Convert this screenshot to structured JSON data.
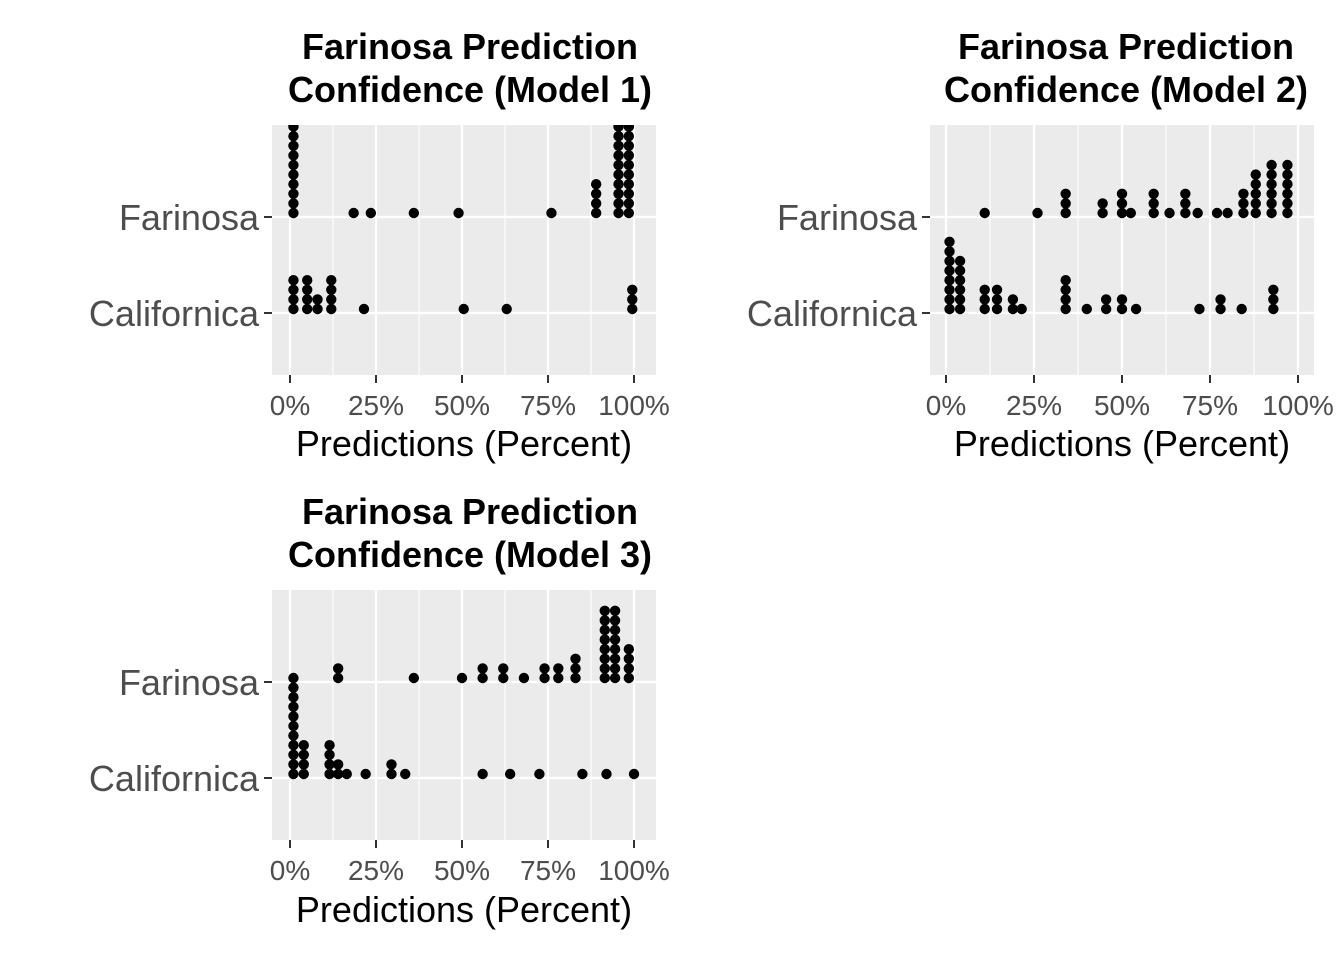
{
  "chart_data": [
    {
      "type": "dotplot",
      "title": "Farinosa Prediction Confidence (Model 1)",
      "title_lines": [
        "Farinosa Prediction",
        "Confidence (Model 1)"
      ],
      "xlabel": "Predictions (Percent)",
      "ylabel": "",
      "xlim": [
        0,
        1
      ],
      "xticks": [
        0,
        0.25,
        0.5,
        0.75,
        1.0
      ],
      "xtick_labels": [
        "0%",
        "25%",
        "50%",
        "75%",
        "100%"
      ],
      "categories": [
        "Californica",
        "Farinosa"
      ],
      "grid": true,
      "panel_background": "#ebebeb",
      "dot_color": "#000000",
      "series": [
        {
          "category": "Farinosa",
          "stacks": [
            {
              "x": 0.01,
              "count": 16
            },
            {
              "x": 0.185,
              "count": 1
            },
            {
              "x": 0.235,
              "count": 1
            },
            {
              "x": 0.36,
              "count": 1
            },
            {
              "x": 0.49,
              "count": 1
            },
            {
              "x": 0.76,
              "count": 1
            },
            {
              "x": 0.89,
              "count": 4
            },
            {
              "x": 0.955,
              "count": 12
            },
            {
              "x": 0.985,
              "count": 12
            }
          ]
        },
        {
          "category": "Californica",
          "stacks": [
            {
              "x": 0.01,
              "count": 4
            },
            {
              "x": 0.05,
              "count": 4
            },
            {
              "x": 0.08,
              "count": 2
            },
            {
              "x": 0.12,
              "count": 4
            },
            {
              "x": 0.215,
              "count": 1
            },
            {
              "x": 0.505,
              "count": 1
            },
            {
              "x": 0.63,
              "count": 1
            },
            {
              "x": 0.995,
              "count": 3
            }
          ]
        }
      ]
    },
    {
      "type": "dotplot",
      "title": "Farinosa Prediction Confidence (Model 2)",
      "title_lines": [
        "Farinosa Prediction",
        "Confidence (Model 2)"
      ],
      "xlabel": "Predictions (Percent)",
      "ylabel": "",
      "xlim": [
        0,
        1
      ],
      "xticks": [
        0,
        0.25,
        0.5,
        0.75,
        1.0
      ],
      "xtick_labels": [
        "0%",
        "25%",
        "50%",
        "75%",
        "100%"
      ],
      "categories": [
        "Californica",
        "Farinosa"
      ],
      "grid": true,
      "panel_background": "#ebebeb",
      "dot_color": "#000000",
      "series": [
        {
          "category": "Farinosa",
          "stacks": [
            {
              "x": 0.11,
              "count": 1
            },
            {
              "x": 0.26,
              "count": 1
            },
            {
              "x": 0.34,
              "count": 3
            },
            {
              "x": 0.445,
              "count": 2
            },
            {
              "x": 0.5,
              "count": 3
            },
            {
              "x": 0.525,
              "count": 1
            },
            {
              "x": 0.59,
              "count": 3
            },
            {
              "x": 0.635,
              "count": 1
            },
            {
              "x": 0.68,
              "count": 3
            },
            {
              "x": 0.715,
              "count": 1
            },
            {
              "x": 0.77,
              "count": 1
            },
            {
              "x": 0.8,
              "count": 1
            },
            {
              "x": 0.845,
              "count": 3
            },
            {
              "x": 0.88,
              "count": 5
            },
            {
              "x": 0.925,
              "count": 6
            },
            {
              "x": 0.97,
              "count": 6
            }
          ]
        },
        {
          "category": "Californica",
          "stacks": [
            {
              "x": 0.01,
              "count": 8
            },
            {
              "x": 0.04,
              "count": 6
            },
            {
              "x": 0.11,
              "count": 3
            },
            {
              "x": 0.145,
              "count": 3
            },
            {
              "x": 0.19,
              "count": 2
            },
            {
              "x": 0.215,
              "count": 1
            },
            {
              "x": 0.34,
              "count": 4
            },
            {
              "x": 0.4,
              "count": 1
            },
            {
              "x": 0.455,
              "count": 2
            },
            {
              "x": 0.5,
              "count": 2
            },
            {
              "x": 0.54,
              "count": 1
            },
            {
              "x": 0.72,
              "count": 1
            },
            {
              "x": 0.78,
              "count": 2
            },
            {
              "x": 0.84,
              "count": 1
            },
            {
              "x": 0.93,
              "count": 3
            }
          ]
        }
      ]
    },
    {
      "type": "dotplot",
      "title": "Farinosa Prediction Confidence (Model 3)",
      "title_lines": [
        "Farinosa Prediction",
        "Confidence (Model 3)"
      ],
      "xlabel": "Predictions (Percent)",
      "ylabel": "",
      "xlim": [
        0,
        1
      ],
      "xticks": [
        0,
        0.25,
        0.5,
        0.75,
        1.0
      ],
      "xtick_labels": [
        "0%",
        "25%",
        "50%",
        "75%",
        "100%"
      ],
      "categories": [
        "Californica",
        "Farinosa"
      ],
      "grid": true,
      "panel_background": "#ebebeb",
      "dot_color": "#000000",
      "series": [
        {
          "category": "Farinosa",
          "stacks": [
            {
              "x": 0.14,
              "count": 2
            },
            {
              "x": 0.36,
              "count": 1
            },
            {
              "x": 0.5,
              "count": 1
            },
            {
              "x": 0.56,
              "count": 2
            },
            {
              "x": 0.62,
              "count": 2
            },
            {
              "x": 0.68,
              "count": 1
            },
            {
              "x": 0.74,
              "count": 2
            },
            {
              "x": 0.78,
              "count": 2
            },
            {
              "x": 0.83,
              "count": 3
            },
            {
              "x": 0.915,
              "count": 8
            },
            {
              "x": 0.945,
              "count": 8
            },
            {
              "x": 0.985,
              "count": 4
            }
          ]
        },
        {
          "category": "Californica",
          "stacks": [
            {
              "x": 0.01,
              "count": 11
            },
            {
              "x": 0.04,
              "count": 4
            },
            {
              "x": 0.115,
              "count": 4
            },
            {
              "x": 0.14,
              "count": 2
            },
            {
              "x": 0.165,
              "count": 1
            },
            {
              "x": 0.22,
              "count": 1
            },
            {
              "x": 0.295,
              "count": 2
            },
            {
              "x": 0.335,
              "count": 1
            },
            {
              "x": 0.56,
              "count": 1
            },
            {
              "x": 0.64,
              "count": 1
            },
            {
              "x": 0.725,
              "count": 1
            },
            {
              "x": 0.85,
              "count": 1
            },
            {
              "x": 0.92,
              "count": 1
            },
            {
              "x": 1.0,
              "count": 1
            }
          ]
        }
      ]
    }
  ]
}
